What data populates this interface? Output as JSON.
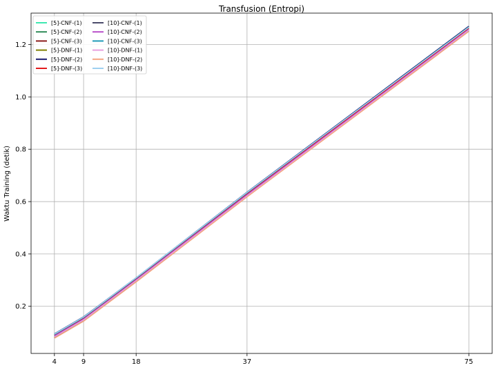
{
  "chart_data": {
    "type": "line",
    "title": "Transfusion (Entropi)",
    "xlabel": "",
    "ylabel": "Waktu Training (detik)",
    "x": [
      4,
      9,
      18,
      37,
      75
    ],
    "xlim": [
      0,
      79
    ],
    "ylim": [
      0.02,
      1.32
    ],
    "xticks": [
      "4",
      "9",
      "18",
      "37",
      "75"
    ],
    "yticks": [
      "0.2",
      "0.4",
      "0.6",
      "0.8",
      "1.0",
      "1.2"
    ],
    "grid": true,
    "legend_position": "top-left",
    "legend_columns": 2,
    "series": [
      {
        "name": "[5]-CNF-(1)",
        "color": "#3de8b0",
        "values": [
          0.088,
          0.152,
          0.302,
          0.627,
          1.265
        ]
      },
      {
        "name": "[5]-CNF-(2)",
        "color": "#2e8b57",
        "values": [
          0.085,
          0.15,
          0.3,
          0.625,
          1.262
        ]
      },
      {
        "name": "[5]-CNF-(3)",
        "color": "#8b1a1a",
        "values": [
          0.08,
          0.146,
          0.296,
          0.62,
          1.252
        ]
      },
      {
        "name": "[5]-DNF-(1)",
        "color": "#808000",
        "values": [
          0.082,
          0.147,
          0.297,
          0.621,
          1.253
        ]
      },
      {
        "name": "[5]-DNF-(2)",
        "color": "#191970",
        "values": [
          0.095,
          0.16,
          0.309,
          0.636,
          1.27
        ]
      },
      {
        "name": "[5]-DNF-(3)",
        "color": "#e31a1c",
        "values": [
          0.09,
          0.154,
          0.304,
          0.63,
          1.263
        ]
      },
      {
        "name": "[10]-CNF-(1)",
        "color": "#4a4a6a",
        "values": [
          0.092,
          0.157,
          0.307,
          0.633,
          1.268
        ]
      },
      {
        "name": "[10]-CNF-(2)",
        "color": "#b84fc9",
        "values": [
          0.087,
          0.151,
          0.301,
          0.626,
          1.258
        ]
      },
      {
        "name": "[10]-CNF-(3)",
        "color": "#1f9bb8",
        "values": [
          0.093,
          0.158,
          0.308,
          0.634,
          1.267
        ]
      },
      {
        "name": "[10]-DNF-(1)",
        "color": "#e8a0e0",
        "values": [
          0.083,
          0.148,
          0.298,
          0.622,
          1.255
        ]
      },
      {
        "name": "[10]-DNF-(2)",
        "color": "#f5a582",
        "values": [
          0.078,
          0.143,
          0.293,
          0.618,
          1.25
        ]
      },
      {
        "name": "[10]-DNF-(3)",
        "color": "#9ed0f0",
        "values": [
          0.094,
          0.159,
          0.309,
          0.635,
          1.266
        ]
      }
    ]
  }
}
